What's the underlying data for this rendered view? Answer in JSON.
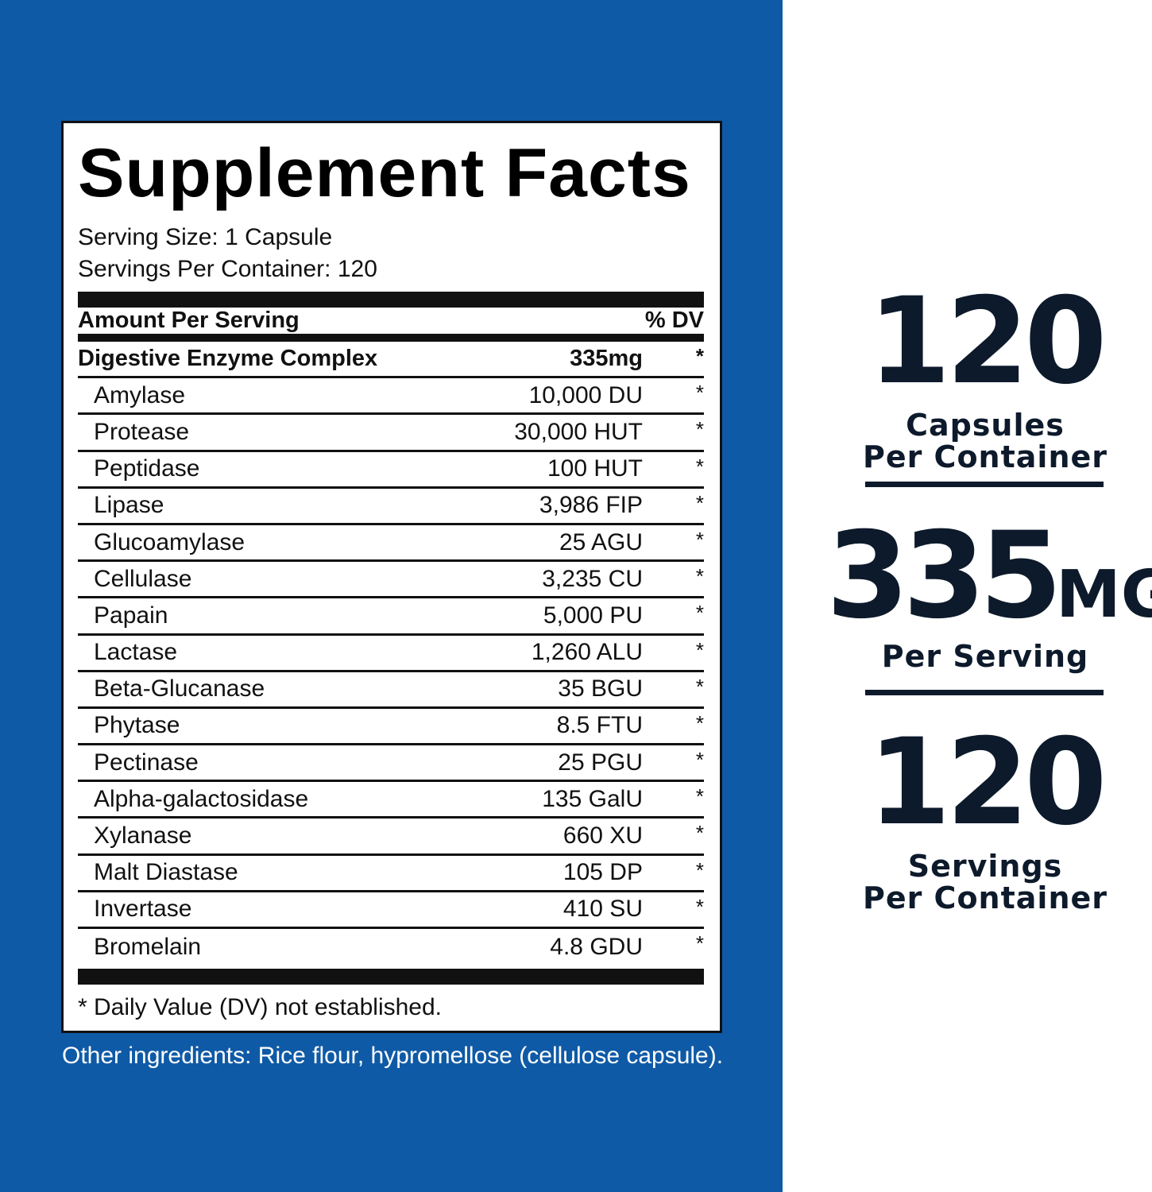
{
  "facts": {
    "title": "Supplement Facts",
    "serving_size": "Serving Size: 1 Capsule",
    "servings_per_container": "Servings Per Container: 120",
    "header_left": "Amount Per Serving",
    "header_right": "% DV",
    "complex": {
      "name": "Digestive Enzyme Complex",
      "amount": "335mg",
      "dv": "*"
    },
    "ingredients": [
      {
        "name": "Amylase",
        "amount": "10,000 DU",
        "dv": "*"
      },
      {
        "name": "Protease",
        "amount": "30,000 HUT",
        "dv": "*"
      },
      {
        "name": "Peptidase",
        "amount": "100 HUT",
        "dv": "*"
      },
      {
        "name": "Lipase",
        "amount": "3,986 FIP",
        "dv": "*"
      },
      {
        "name": "Glucoamylase",
        "amount": "25 AGU",
        "dv": "*"
      },
      {
        "name": "Cellulase",
        "amount": "3,235 CU",
        "dv": "*"
      },
      {
        "name": "Papain",
        "amount": "5,000 PU",
        "dv": "*"
      },
      {
        "name": "Lactase",
        "amount": "1,260 ALU",
        "dv": "*"
      },
      {
        "name": "Beta-Glucanase",
        "amount": "35 BGU",
        "dv": "*"
      },
      {
        "name": "Phytase",
        "amount": "8.5 FTU",
        "dv": "*"
      },
      {
        "name": "Pectinase",
        "amount": "25 PGU",
        "dv": "*"
      },
      {
        "name": "Alpha-galactosidase",
        "amount": "135  GalU",
        "dv": "*"
      },
      {
        "name": "Xylanase",
        "amount": "660 XU",
        "dv": "*"
      },
      {
        "name": "Malt Diastase",
        "amount": "105 DP",
        "dv": "*"
      },
      {
        "name": "Invertase",
        "amount": "410 SU",
        "dv": "*"
      },
      {
        "name": "Bromelain",
        "amount": "4.8 GDU",
        "dv": "*"
      }
    ],
    "footnote": "* Daily Value (DV) not established."
  },
  "other_ingredients": "Other ingredients: Rice flour, hypromellose (cellulose capsule).",
  "highlights": {
    "capsules": {
      "number": "120",
      "line1": "Capsules",
      "line2": "Per Container"
    },
    "per_serving": {
      "number": "335",
      "unit": "MG",
      "line1": "Per Serving"
    },
    "servings": {
      "number": "120",
      "line1": "Servings",
      "line2": "Per Container"
    }
  },
  "colors": {
    "panel_blue": "#0f5aa6",
    "navy_text": "#0d1a2b"
  }
}
